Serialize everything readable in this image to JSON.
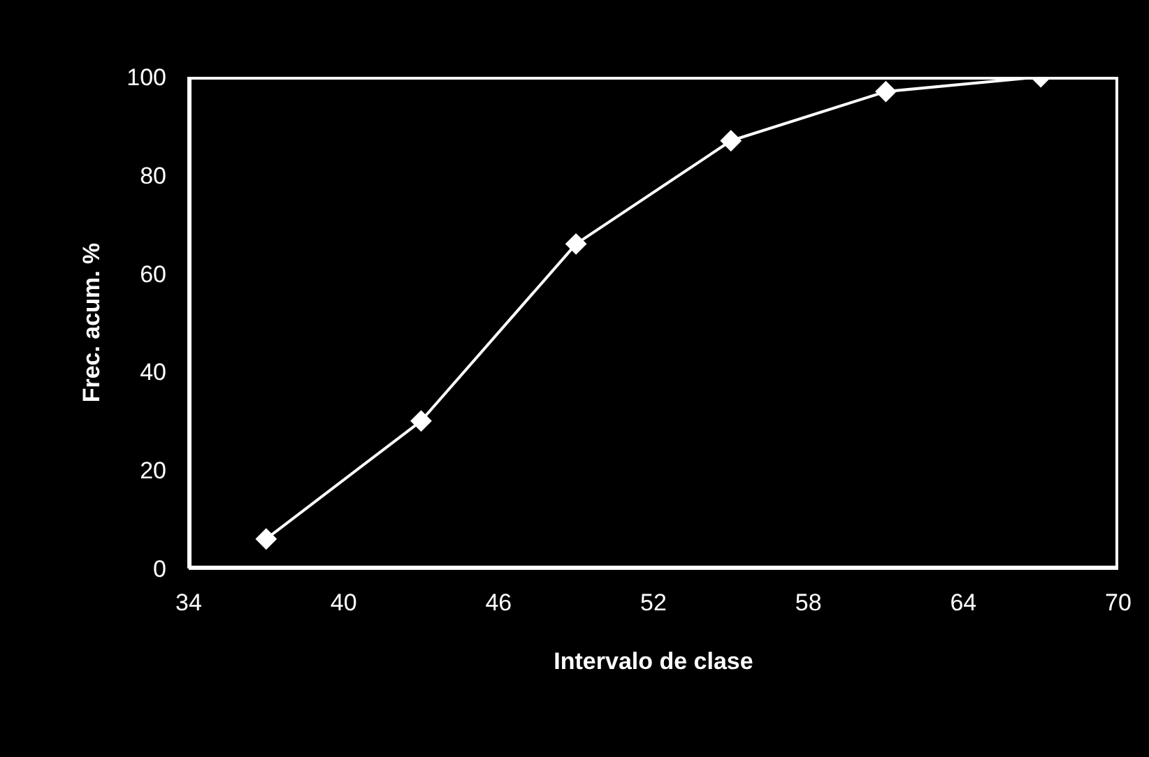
{
  "chart_data": {
    "type": "line",
    "xlabel": "Intervalo de clase",
    "ylabel": "Frec. acum. %",
    "x": [
      37,
      43,
      49,
      55,
      61,
      67
    ],
    "series": [
      {
        "color": "#ffffff",
        "values": [
          6,
          30,
          66,
          87,
          97,
          100
        ]
      }
    ],
    "xlim": [
      34,
      70
    ],
    "xticks": [
      34,
      40,
      46,
      52,
      58,
      64,
      70
    ],
    "ylim": [
      0,
      100
    ],
    "yticks": [
      0,
      20,
      40,
      60,
      80,
      100
    ],
    "marker": "diamond",
    "line_style": "solid",
    "legend": false
  }
}
